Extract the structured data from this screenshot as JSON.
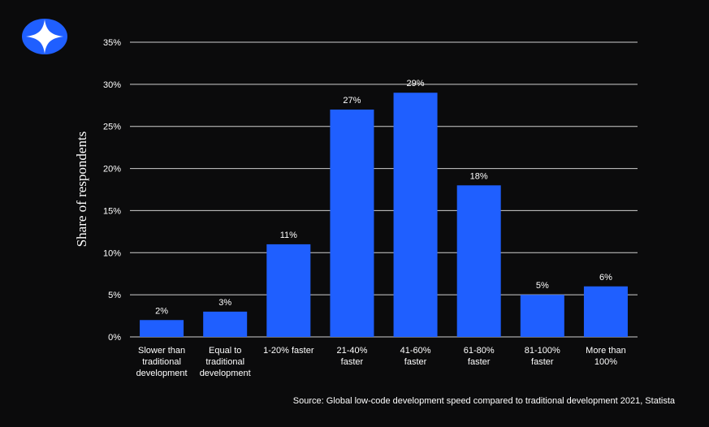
{
  "brand": {
    "logo_icon": "four-point-star-logo-icon",
    "accent_color": "#1f5fff",
    "background_color": "#0b0b0c"
  },
  "source_note": "Source: Global low-code development speed compared to traditional development 2021, Statista",
  "chart_data": {
    "type": "bar",
    "ylabel": "Share of respondents",
    "xlabel": "",
    "ylim": [
      0,
      35
    ],
    "yticks": [
      0,
      5,
      10,
      15,
      20,
      25,
      30,
      35
    ],
    "ytick_labels": [
      "0%",
      "5%",
      "10%",
      "15%",
      "20%",
      "25%",
      "30%",
      "35%"
    ],
    "grid": true,
    "categories": [
      [
        "Slower than",
        "traditional",
        "development"
      ],
      [
        "Equal to",
        "traditional",
        "development"
      ],
      [
        "1-20% faster"
      ],
      [
        "21-40%",
        "faster"
      ],
      [
        "41-60%",
        "faster"
      ],
      [
        "61-80%",
        "faster"
      ],
      [
        "81-100%",
        "faster"
      ],
      [
        "More than",
        "100%"
      ]
    ],
    "values": [
      2,
      3,
      11,
      27,
      29,
      18,
      5,
      6
    ],
    "data_labels": [
      "2%",
      "3%",
      "11%",
      "27%",
      "29%",
      "18%",
      "5%",
      "6%"
    ],
    "bar_color": "#1f5fff"
  }
}
